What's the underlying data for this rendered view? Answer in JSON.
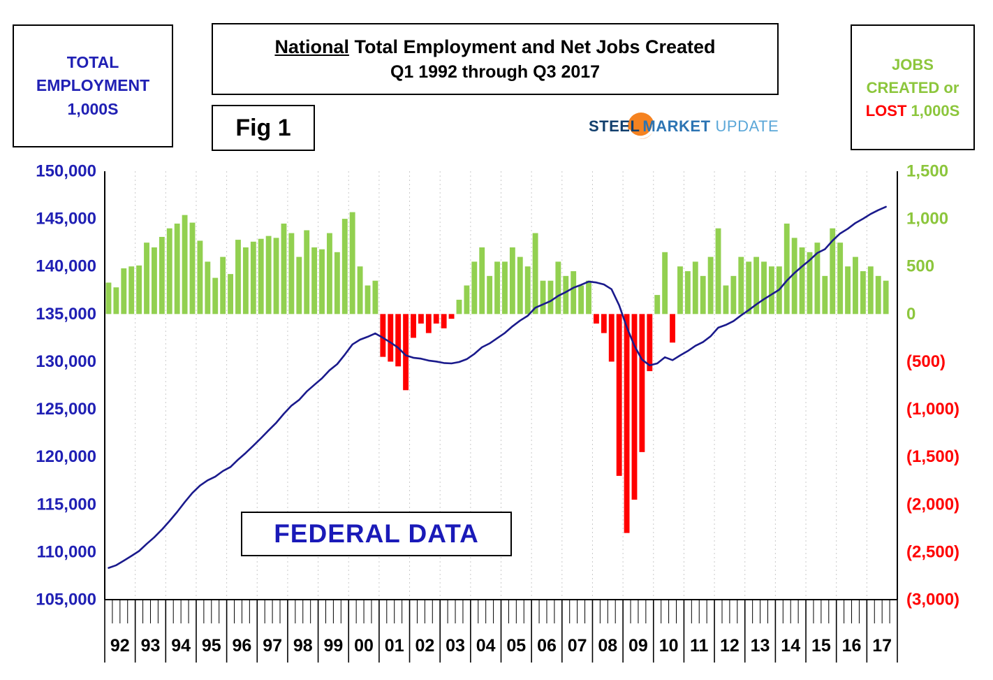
{
  "header": {
    "left_box": {
      "line1": "TOTAL",
      "line2": "EMPLOYMENT",
      "line3": "1,000S"
    },
    "title_box": {
      "emphasis": "National",
      "rest": " Total Employment and Net Jobs Created",
      "subtitle": "Q1 1992 through Q3 2017"
    },
    "fig_label": "Fig 1",
    "logo": {
      "steel": "STEEL",
      "market": "MARKET",
      "update": "UPDATE"
    },
    "right_box": {
      "line1": "JOBS",
      "line2": "CREATED or",
      "lost": "LOST",
      "units": "1,000S"
    }
  },
  "overlay_label": "FEDERAL DATA",
  "chart_data": {
    "type": "bar+line",
    "title": "National Total Employment and Net Jobs Created",
    "subtitle": "Q1 1992 through Q3 2017",
    "frequency": "quarterly",
    "start": "1992-Q1",
    "end": "2017-Q3",
    "x_categories": [
      "92",
      "93",
      "94",
      "95",
      "96",
      "97",
      "98",
      "99",
      "00",
      "01",
      "02",
      "03",
      "04",
      "05",
      "06",
      "07",
      "08",
      "09",
      "10",
      "11",
      "12",
      "13",
      "14",
      "15",
      "16",
      "17"
    ],
    "left_axis": {
      "label": "TOTAL EMPLOYMENT 1,000S",
      "min": 105000,
      "max": 150000,
      "tick_step": 5000,
      "ticks": [
        "150,000",
        "145,000",
        "140,000",
        "135,000",
        "130,000",
        "125,000",
        "120,000",
        "115,000",
        "110,000",
        "105,000"
      ]
    },
    "right_axis": {
      "label": "JOBS CREATED or LOST 1,000S",
      "min": -3000,
      "max": 1500,
      "tick_step": 500,
      "ticks": [
        "1,500",
        "1,000",
        "500",
        "0",
        "(500)",
        "(1,000)",
        "(1,500)",
        "(2,000)",
        "(2,500)",
        "(3,000)"
      ]
    },
    "grid": {
      "vertical_per_year": true,
      "horizontal": false
    },
    "series": [
      {
        "name": "Net Jobs Created or Lost (1,000s)",
        "type": "bar",
        "axis": "right",
        "values": [
          330,
          280,
          480,
          500,
          510,
          750,
          700,
          810,
          900,
          950,
          1040,
          960,
          770,
          550,
          380,
          600,
          420,
          780,
          700,
          760,
          790,
          820,
          800,
          950,
          850,
          600,
          880,
          700,
          680,
          850,
          650,
          1000,
          1070,
          500,
          300,
          350,
          -450,
          -500,
          -550,
          -800,
          -250,
          -100,
          -200,
          -100,
          -150,
          -50,
          150,
          300,
          550,
          700,
          400,
          550,
          550,
          700,
          600,
          500,
          850,
          350,
          350,
          550,
          400,
          450,
          300,
          350,
          -100,
          -200,
          -500,
          -1700,
          -2300,
          -1950,
          -1450,
          -600,
          200,
          650,
          -300,
          500,
          450,
          550,
          400,
          600,
          900,
          300,
          400,
          600,
          550,
          600,
          550,
          500,
          500,
          950,
          800,
          700,
          650,
          750,
          400,
          900,
          750,
          500,
          600,
          450,
          500,
          400,
          350
        ]
      },
      {
        "name": "Total Employment (1,000s)",
        "type": "line",
        "axis": "left",
        "values": [
          108330,
          108610,
          109090,
          109590,
          110100,
          110850,
          111550,
          112360,
          113260,
          114210,
          115250,
          116210,
          116980,
          117530,
          117910,
          118510,
          118930,
          119710,
          120410,
          121170,
          121960,
          122780,
          123580,
          124530,
          125380,
          125980,
          126860,
          127560,
          128240,
          129090,
          129740,
          130740,
          131810,
          132310,
          132610,
          132960,
          132510,
          132010,
          131460,
          130660,
          130410,
          130310,
          130110,
          130010,
          129860,
          129810,
          129960,
          130260,
          130810,
          131510,
          131910,
          132460,
          133010,
          133710,
          134310,
          134810,
          135660,
          136010,
          136360,
          136910,
          137310,
          137760,
          138060,
          138410,
          138310,
          138110,
          137610,
          135910,
          133610,
          131660,
          130210,
          129610,
          129810,
          130460,
          130160,
          130660,
          131110,
          131660,
          132060,
          132660,
          133560,
          133860,
          134260,
          134860,
          135410,
          136010,
          136560,
          137060,
          137560,
          138510,
          139310,
          140010,
          140660,
          141410,
          141810,
          142710,
          143460,
          143960,
          144560,
          145010,
          145510,
          145910,
          146260
        ]
      }
    ],
    "colors": {
      "bar_positive": "#92D050",
      "bar_negative": "#FF0000",
      "line": "#1A1A8C",
      "left_axis_text": "#2020B4",
      "right_axis_positive_text": "#8CC63C",
      "right_axis_negative_text": "#FF0000",
      "year_text": "#000000",
      "gridline": "#C9C9C9",
      "axis": "#000000"
    }
  }
}
